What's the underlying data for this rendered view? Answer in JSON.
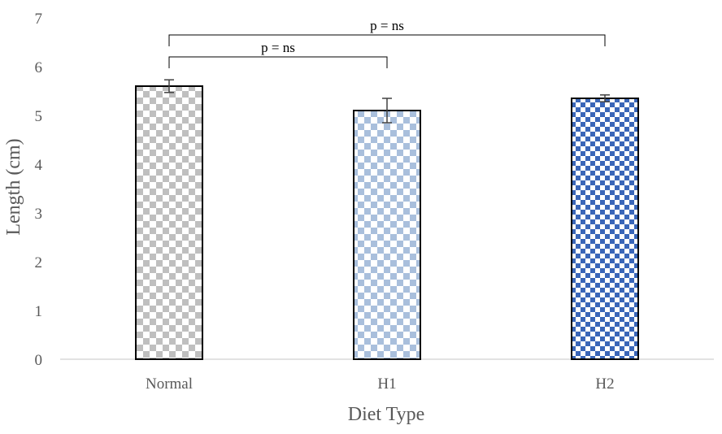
{
  "chart_data": {
    "type": "bar",
    "title": "",
    "xlabel": "Diet Type",
    "ylabel": "Length (cm)",
    "ylim": [
      0,
      7
    ],
    "yticks": [
      0,
      1,
      2,
      3,
      4,
      5,
      6,
      7
    ],
    "categories": [
      "Normal",
      "H1",
      "H2"
    ],
    "values": [
      5.6,
      5.1,
      5.35
    ],
    "errors": [
      0.13,
      0.25,
      0.07
    ],
    "grid": false,
    "legend": "none",
    "colors": {
      "Normal": "#bfbfbf",
      "H1": "#a9bfdc",
      "H2": "#3a66b8"
    },
    "annotations": [
      {
        "text": "p = ns",
        "from": "Normal",
        "to": "H1",
        "y": 6.2
      },
      {
        "text": "p = ns",
        "from": "Normal",
        "to": "H2",
        "y": 6.65
      }
    ]
  }
}
